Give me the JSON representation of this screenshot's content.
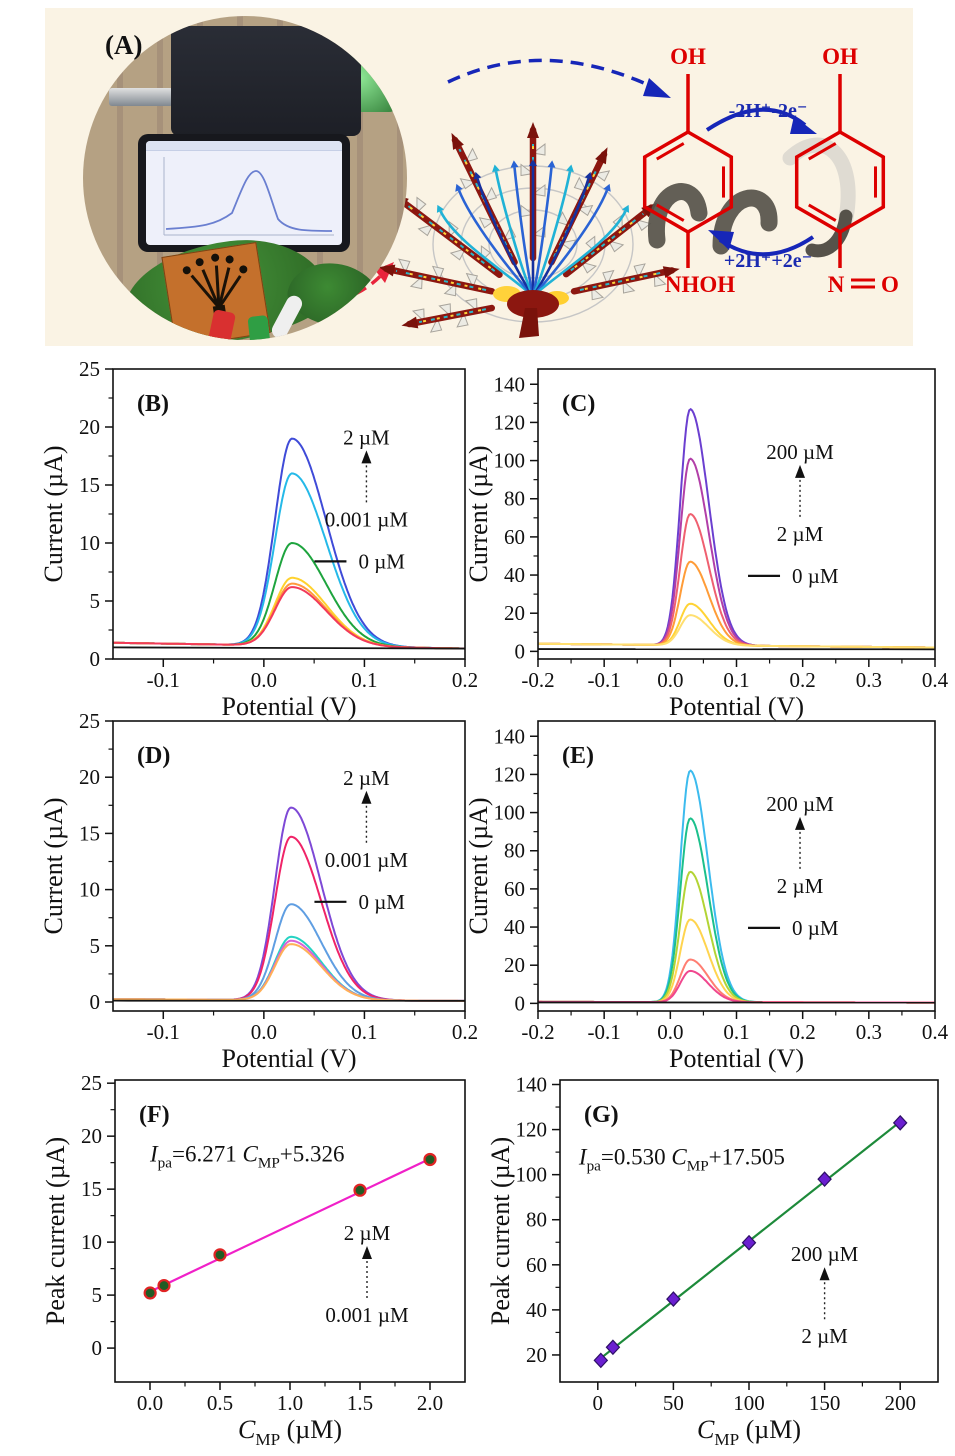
{
  "figure": {
    "panel_a": {
      "label": "(A)",
      "reaction": {
        "oh_left": "OH",
        "oh_right": "OH",
        "nhoh": "NHOH",
        "n": "N",
        "o": "O",
        "forward_label": "-2H⁺-2e⁻",
        "backward_label": "+2H⁺+2e⁻",
        "ring_color": "#dd0000",
        "arrow_color": "#1a2ab0"
      }
    }
  },
  "chart_data": [
    {
      "panel": "B",
      "type": "line",
      "subtype": "dpv",
      "letter": "(B)",
      "xlabel": "Potential (V)",
      "ylabel": "Current (µA)",
      "xlim": [
        -0.15,
        0.2
      ],
      "ylim": [
        0,
        25
      ],
      "xticks": [
        -0.1,
        0.0,
        0.1,
        0.2
      ],
      "xtick_labels": [
        "-0.1",
        "0.0",
        "0.1",
        "0.2"
      ],
      "yticks": [
        0,
        5,
        10,
        15,
        20,
        25
      ],
      "ytick_labels": [
        "0",
        "5",
        "10",
        "15",
        "20",
        "25"
      ],
      "peak_potential": 0.028,
      "peak_width": {
        "left": 0.017,
        "right": 0.034
      },
      "baseline": {
        "start": 1.4,
        "end": 0.9
      },
      "series": [
        {
          "color": "#3f4bd8",
          "peak": 19.0
        },
        {
          "color": "#25b9e8",
          "peak": 16.0
        },
        {
          "color": "#1ea43e",
          "peak": 10.0
        },
        {
          "color": "#ffd22e",
          "peak": 7.0
        },
        {
          "color": "#ff9a3d",
          "peak": 6.5
        },
        {
          "color": "#f23a5a",
          "peak": 6.2
        }
      ],
      "blank_line": {
        "value": 1.0,
        "color": "#151515"
      },
      "legend": {
        "top": "2 µM",
        "bottom": "0.001 µM",
        "zero": "0 µM",
        "x": 0.72,
        "y": 0.26
      }
    },
    {
      "panel": "C",
      "type": "line",
      "subtype": "dpv",
      "letter": "(C)",
      "xlabel": "Potential (V)",
      "ylabel": "Current (µA)",
      "xlim": [
        -0.2,
        0.4
      ],
      "ylim": [
        -4,
        148
      ],
      "xticks": [
        -0.2,
        -0.1,
        0.0,
        0.1,
        0.2,
        0.3,
        0.4
      ],
      "xtick_labels": [
        "-0.2",
        "-0.1",
        "0.0",
        "0.1",
        "0.2",
        "0.3",
        "0.4"
      ],
      "yticks": [
        0,
        20,
        40,
        60,
        80,
        100,
        120,
        140
      ],
      "ytick_labels": [
        "0",
        "20",
        "40",
        "60",
        "80",
        "100",
        "120",
        "140"
      ],
      "peak_potential": 0.03,
      "peak_width": {
        "left": 0.015,
        "right": 0.028
      },
      "baseline": {
        "start": 4.0,
        "end": 2.0
      },
      "series": [
        {
          "color": "#6b3fd0",
          "peak": 127.0
        },
        {
          "color": "#b23fa8",
          "peak": 101.0
        },
        {
          "color": "#ef6070",
          "peak": 72.0
        },
        {
          "color": "#ff9c38",
          "peak": 47.0
        },
        {
          "color": "#ffd335",
          "peak": 25.0
        },
        {
          "color": "#ffdf70",
          "peak": 19.0
        }
      ],
      "blank_line": {
        "value": 1.2,
        "color": "#151515"
      },
      "legend": {
        "top": "200 µM",
        "bottom": "2 µM",
        "zero": "0 µM",
        "x": 0.66,
        "y": 0.31
      }
    },
    {
      "panel": "D",
      "type": "line",
      "subtype": "dpv",
      "letter": "(D)",
      "xlabel": "Potential (V)",
      "ylabel": "Current (µA)",
      "xlim": [
        -0.15,
        0.2
      ],
      "ylim": [
        -0.8,
        25
      ],
      "xticks": [
        -0.1,
        0.0,
        0.1,
        0.2
      ],
      "xtick_labels": [
        "-0.1",
        "0.0",
        "0.1",
        "0.2"
      ],
      "yticks": [
        0,
        5,
        10,
        15,
        20,
        25
      ],
      "ytick_labels": [
        "0",
        "5",
        "10",
        "15",
        "20",
        "25"
      ],
      "peak_potential": 0.027,
      "peak_width": {
        "left": 0.016,
        "right": 0.03
      },
      "baseline": {
        "start": 0.25,
        "end": 0.1
      },
      "series": [
        {
          "color": "#7e49d6",
          "peak": 17.3
        },
        {
          "color": "#f02468",
          "peak": 14.7
        },
        {
          "color": "#5f9ee2",
          "peak": 8.7
        },
        {
          "color": "#26d3c3",
          "peak": 5.8
        },
        {
          "color": "#d862d8",
          "peak": 5.45
        },
        {
          "color": "#ffb057",
          "peak": 5.15
        }
      ],
      "blank_line": {
        "value": 0.12,
        "color": "#151515"
      },
      "legend": {
        "top": "2 µM",
        "bottom": "0.001 µM",
        "zero": "0 µM",
        "x": 0.72,
        "y": 0.22
      }
    },
    {
      "panel": "E",
      "type": "line",
      "subtype": "dpv",
      "letter": "(E)",
      "xlabel": "Potential (V)",
      "ylabel": "Current (µA)",
      "xlim": [
        -0.2,
        0.4
      ],
      "ylim": [
        -4,
        148
      ],
      "xticks": [
        -0.2,
        -0.1,
        0.0,
        0.1,
        0.2,
        0.3,
        0.4
      ],
      "xtick_labels": [
        "-0.2",
        "-0.1",
        "0.0",
        "0.1",
        "0.2",
        "0.3",
        "0.4"
      ],
      "yticks": [
        0,
        20,
        40,
        60,
        80,
        100,
        120,
        140
      ],
      "ytick_labels": [
        "0",
        "20",
        "40",
        "60",
        "80",
        "100",
        "120",
        "140"
      ],
      "peak_potential": 0.03,
      "peak_width": {
        "left": 0.015,
        "right": 0.027
      },
      "baseline": {
        "start": 0.8,
        "end": 0.4
      },
      "series": [
        {
          "color": "#3cbbee",
          "peak": 122.0
        },
        {
          "color": "#1cc08c",
          "peak": 97.0
        },
        {
          "color": "#b3d435",
          "peak": 69.0
        },
        {
          "color": "#ffd44f",
          "peak": 44.0
        },
        {
          "color": "#ff7e72",
          "peak": 23.0
        },
        {
          "color": "#f0478e",
          "peak": 17.0
        }
      ],
      "blank_line": {
        "value": 0.5,
        "color": "#151515"
      },
      "legend": {
        "top": "200 µM",
        "bottom": "2 µM",
        "zero": "0 µM",
        "x": 0.66,
        "y": 0.31
      }
    },
    {
      "panel": "F",
      "type": "scatter",
      "letter": "(F)",
      "xlabel_parts": [
        [
          "C",
          "i"
        ],
        [
          "MP",
          "sub"
        ],
        [
          " (µM)",
          ""
        ]
      ],
      "ylabel": "Peak current (µA)",
      "xlim": [
        -0.25,
        2.25
      ],
      "ylim": [
        -3.2,
        25.3
      ],
      "xticks": [
        0.0,
        0.5,
        1.0,
        1.5,
        2.0
      ],
      "xtick_labels": [
        "0.0",
        "0.5",
        "1.0",
        "1.5",
        "2.0"
      ],
      "yticks": [
        0,
        5,
        10,
        15,
        20,
        25
      ],
      "ytick_labels": [
        "0",
        "5",
        "10",
        "15",
        "20",
        "25"
      ],
      "points": {
        "x": [
          0.001,
          0.1,
          0.5,
          1.5,
          2.0
        ],
        "y": [
          5.2,
          5.9,
          8.8,
          14.9,
          17.8
        ]
      },
      "fit": {
        "slope": 6.271,
        "intercept": 5.326,
        "color": "#f020c8"
      },
      "marker": {
        "shape": "circle",
        "fill": "#215c24",
        "edge": "#e02424"
      },
      "equation_parts": [
        [
          "I",
          "i"
        ],
        [
          "pa",
          "sub"
        ],
        [
          "=6.271 ",
          ""
        ],
        [
          "C",
          "i"
        ],
        [
          "MP",
          "sub"
        ],
        [
          "+5.326",
          ""
        ]
      ],
      "equation_pos": {
        "x": 0.1,
        "y": 0.27
      },
      "legend": {
        "top": "2 µM",
        "bottom": "0.001 µM",
        "zero": null,
        "x": 0.72,
        "y": 0.53
      }
    },
    {
      "panel": "G",
      "type": "scatter",
      "letter": "(G)",
      "xlabel_parts": [
        [
          "C",
          "i"
        ],
        [
          "MP",
          "sub"
        ],
        [
          " (µM)",
          ""
        ]
      ],
      "ylabel": "Peak current (µA)",
      "xlim": [
        -25,
        225
      ],
      "ylim": [
        8,
        142
      ],
      "xticks": [
        0,
        50,
        100,
        150,
        200
      ],
      "xtick_labels": [
        "0",
        "50",
        "100",
        "150",
        "200"
      ],
      "yticks": [
        20,
        40,
        60,
        80,
        100,
        120,
        140
      ],
      "ytick_labels": [
        "20",
        "40",
        "60",
        "80",
        "100",
        "120",
        "140"
      ],
      "points": {
        "x": [
          2,
          10,
          50,
          100,
          150,
          200
        ],
        "y": [
          17.6,
          23.4,
          44.8,
          69.8,
          98.0,
          123.0
        ]
      },
      "fit": {
        "slope": 0.53,
        "intercept": 17.505,
        "color": "#1d8a3a"
      },
      "marker": {
        "shape": "diamond",
        "fill": "#6a1fd0",
        "edge": "#2d0f66"
      },
      "equation_parts": [
        [
          "I",
          "i"
        ],
        [
          "pa",
          "sub"
        ],
        [
          "=0.530 ",
          ""
        ],
        [
          "C",
          "i"
        ],
        [
          "MP",
          "sub"
        ],
        [
          "+17.505",
          ""
        ]
      ],
      "equation_pos": {
        "x": 0.05,
        "y": 0.28
      },
      "legend": {
        "top": "200 µM",
        "bottom": "2 µM",
        "zero": null,
        "x": 0.7,
        "y": 0.6
      }
    }
  ]
}
